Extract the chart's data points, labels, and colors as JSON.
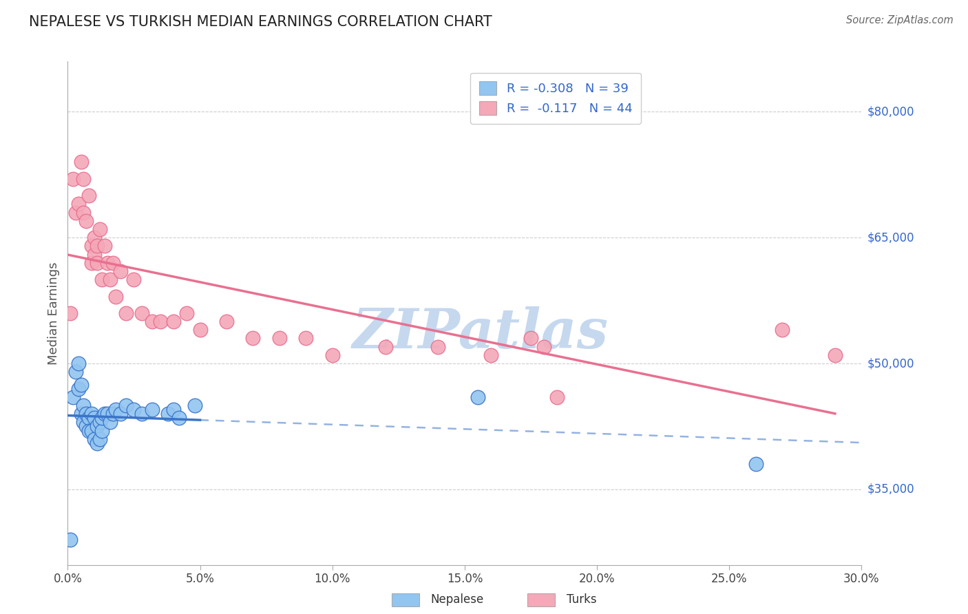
{
  "title": "NEPALESE VS TURKISH MEDIAN EARNINGS CORRELATION CHART",
  "source": "Source: ZipAtlas.com",
  "ylabel": "Median Earnings",
  "xlim": [
    0.0,
    0.3
  ],
  "ylim": [
    26000,
    86000
  ],
  "yticks": [
    35000,
    50000,
    65000,
    80000
  ],
  "ytick_labels": [
    "$35,000",
    "$50,000",
    "$65,000",
    "$80,000"
  ],
  "xtick_labels": [
    "0.0%",
    "5.0%",
    "10.0%",
    "15.0%",
    "20.0%",
    "25.0%",
    "30.0%"
  ],
  "xticks": [
    0.0,
    0.05,
    0.1,
    0.15,
    0.2,
    0.25,
    0.3
  ],
  "nepalese_color": "#92C5F0",
  "turks_color": "#F4A8B8",
  "nepalese_line_color": "#3A74C9",
  "turks_line_color": "#E87090",
  "nepalese_R": -0.308,
  "nepalese_N": 39,
  "turks_R": -0.117,
  "turks_N": 44,
  "background_color": "#ffffff",
  "grid_color": "#cccccc",
  "watermark": "ZIPatlas",
  "watermark_color": "#c5d8ee",
  "nepalese_x": [
    0.001,
    0.002,
    0.003,
    0.004,
    0.004,
    0.005,
    0.005,
    0.006,
    0.006,
    0.007,
    0.007,
    0.008,
    0.008,
    0.009,
    0.009,
    0.01,
    0.01,
    0.011,
    0.011,
    0.012,
    0.012,
    0.013,
    0.013,
    0.014,
    0.015,
    0.016,
    0.017,
    0.018,
    0.02,
    0.022,
    0.025,
    0.028,
    0.032,
    0.038,
    0.04,
    0.042,
    0.048,
    0.155,
    0.26
  ],
  "nepalese_y": [
    29000,
    46000,
    49000,
    50000,
    47000,
    47500,
    44000,
    45000,
    43000,
    44000,
    42500,
    43500,
    42000,
    44000,
    42000,
    43500,
    41000,
    42500,
    40500,
    43000,
    41000,
    42000,
    43500,
    44000,
    44000,
    43000,
    44000,
    44500,
    44000,
    45000,
    44500,
    44000,
    44500,
    44000,
    44500,
    43500,
    45000,
    46000,
    38000
  ],
  "turks_x": [
    0.001,
    0.002,
    0.003,
    0.004,
    0.005,
    0.006,
    0.006,
    0.007,
    0.008,
    0.009,
    0.009,
    0.01,
    0.01,
    0.011,
    0.011,
    0.012,
    0.013,
    0.014,
    0.015,
    0.016,
    0.017,
    0.018,
    0.02,
    0.022,
    0.025,
    0.028,
    0.032,
    0.035,
    0.04,
    0.045,
    0.05,
    0.06,
    0.07,
    0.08,
    0.09,
    0.1,
    0.12,
    0.14,
    0.16,
    0.175,
    0.18,
    0.185,
    0.27,
    0.29
  ],
  "turks_y": [
    56000,
    72000,
    68000,
    69000,
    74000,
    72000,
    68000,
    67000,
    70000,
    64000,
    62000,
    65000,
    63000,
    64000,
    62000,
    66000,
    60000,
    64000,
    62000,
    60000,
    62000,
    58000,
    61000,
    56000,
    60000,
    56000,
    55000,
    55000,
    55000,
    56000,
    54000,
    55000,
    53000,
    53000,
    53000,
    51000,
    52000,
    52000,
    51000,
    53000,
    52000,
    46000,
    54000,
    51000
  ]
}
